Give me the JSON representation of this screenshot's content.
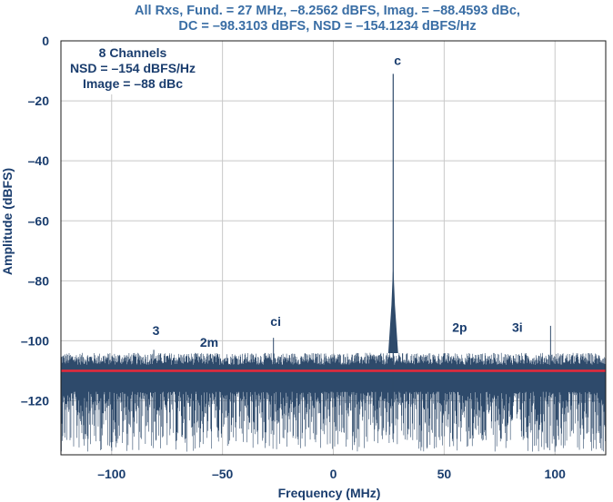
{
  "chart_data": {
    "type": "line",
    "title_line1": "All Rxs, Fund. = 27 MHz, –8.2562 dBFS, Imag. = –88.4593 dBc,",
    "title_line2": "DC = –98.3103 dBFS, NSD = –154.1234 dBFS/Hz",
    "xlabel": "Frequency (MHz)",
    "ylabel": "Amplitude (dBFS)",
    "xlim": [
      -122.88,
      122.88
    ],
    "ylim": [
      -138,
      0
    ],
    "x_ticks": [
      {
        "value": -100,
        "label": "–100"
      },
      {
        "value": -50,
        "label": "–50"
      },
      {
        "value": 0,
        "label": "0"
      },
      {
        "value": 50,
        "label": "50"
      },
      {
        "value": 100,
        "label": "100"
      }
    ],
    "y_ticks": [
      {
        "value": 0,
        "label": "0"
      },
      {
        "value": -20,
        "label": "–20"
      },
      {
        "value": -40,
        "label": "–40"
      },
      {
        "value": -60,
        "label": "–60"
      },
      {
        "value": -80,
        "label": "–80"
      },
      {
        "value": -100,
        "label": "–100"
      },
      {
        "value": -120,
        "label": "–120"
      }
    ],
    "grid": true,
    "legend_box": {
      "placement": "top-left",
      "lines": [
        "8 Channels",
        "NSD = –154 dBFS/Hz",
        "Image = –88 dBc"
      ]
    },
    "noise_floor": {
      "mean": -111,
      "max": -104,
      "min": -137,
      "color": "#2e4a6b"
    },
    "reference_line": {
      "y": -110,
      "color": "#e8293a"
    },
    "series": [
      {
        "values": [
          {
            "x": 27,
            "y": -11
          },
          {
            "x": 27,
            "y": -77
          }
        ]
      }
    ],
    "spurs": [
      {
        "label": "3",
        "x": -81,
        "y": -103
      },
      {
        "label": "2m",
        "x": -54,
        "y": -106
      },
      {
        "label": "ci",
        "x": -27,
        "y": -99
      },
      {
        "label": "2p",
        "x": 54,
        "y": -106
      },
      {
        "label": "3i",
        "x": 98,
        "y": -95
      }
    ],
    "annotations": [
      {
        "label": "c",
        "x": 29,
        "y": -8
      },
      {
        "label": "3",
        "x": -80,
        "y": -98
      },
      {
        "label": "2m",
        "x": -56,
        "y": -102
      },
      {
        "label": "ci",
        "x": -26,
        "y": -95
      },
      {
        "label": "2p",
        "x": 57,
        "y": -97
      },
      {
        "label": "3i",
        "x": 83,
        "y": -97
      }
    ],
    "colors": {
      "spectrum": "#2e4a6b",
      "axis_text": "#1a3d6e",
      "title": "#3a6ea5",
      "grid": "#c8c8c8"
    }
  }
}
